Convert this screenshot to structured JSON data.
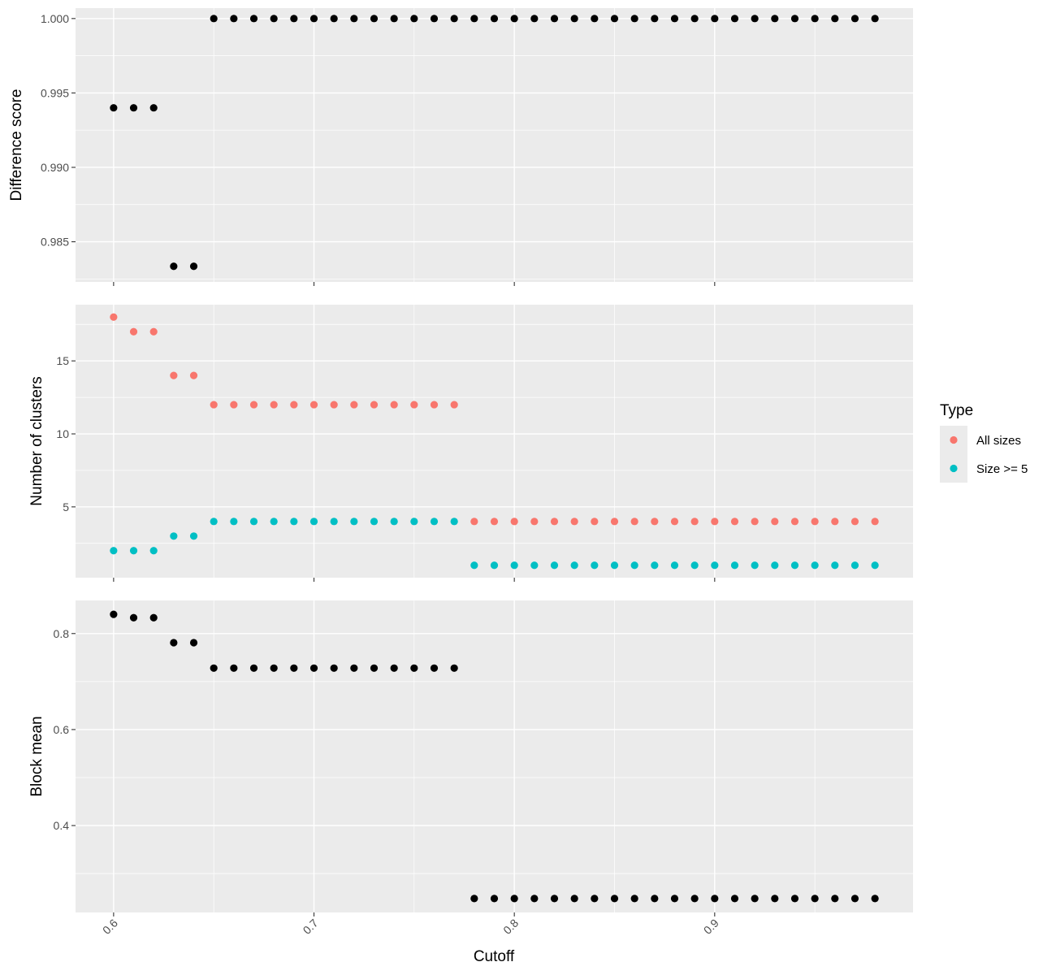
{
  "chart_data": {
    "type": "scatter",
    "xlabel": "Cutoff",
    "x_ticks": [
      0.6,
      0.7,
      0.8,
      0.9
    ],
    "x_tick_labels": [
      "0.6",
      "0.7",
      "0.8",
      "0.9"
    ],
    "xlim": [
      0.581,
      0.999
    ],
    "legend": {
      "title": "Type",
      "position": "right",
      "entries": [
        {
          "name": "All sizes",
          "color": "#F8766D"
        },
        {
          "name": "Size >= 5",
          "color": "#00BFC4"
        }
      ]
    },
    "panels": [
      {
        "ylabel": "Difference score",
        "ylim": [
          0.9823,
          1.0007
        ],
        "y_ticks": [
          0.985,
          0.99,
          0.995,
          1.0
        ],
        "y_tick_labels": [
          "0.985",
          "0.990",
          "0.995",
          "1.000"
        ],
        "grid": true,
        "series": [
          {
            "color": "#000000",
            "x": [
              0.6,
              0.61,
              0.62,
              0.63,
              0.64,
              0.65,
              0.66,
              0.67,
              0.68,
              0.69,
              0.7,
              0.71,
              0.72,
              0.73,
              0.74,
              0.75,
              0.76,
              0.77,
              0.78,
              0.79,
              0.8,
              0.81,
              0.82,
              0.83,
              0.84,
              0.85,
              0.86,
              0.87,
              0.88,
              0.89,
              0.9,
              0.91,
              0.92,
              0.93,
              0.94,
              0.95,
              0.96,
              0.97,
              0.98
            ],
            "y": [
              0.994,
              0.994,
              0.994,
              0.98335,
              0.98335,
              1.0,
              1.0,
              1.0,
              1.0,
              1.0,
              1.0,
              1.0,
              1.0,
              1.0,
              1.0,
              1.0,
              1.0,
              1.0,
              1.0,
              1.0,
              1.0,
              1.0,
              1.0,
              1.0,
              1.0,
              1.0,
              1.0,
              1.0,
              1.0,
              1.0,
              1.0,
              1.0,
              1.0,
              1.0,
              1.0,
              1.0,
              1.0,
              1.0,
              1.0
            ]
          }
        ]
      },
      {
        "ylabel": "Number of clusters",
        "ylim": [
          0.15,
          18.85
        ],
        "y_ticks": [
          5,
          10,
          15
        ],
        "y_tick_labels": [
          "5",
          "10",
          "15"
        ],
        "grid": true,
        "series": [
          {
            "name": "All sizes",
            "color": "#F8766D",
            "x": [
              0.6,
              0.61,
              0.62,
              0.63,
              0.64,
              0.65,
              0.66,
              0.67,
              0.68,
              0.69,
              0.7,
              0.71,
              0.72,
              0.73,
              0.74,
              0.75,
              0.76,
              0.77,
              0.78,
              0.79,
              0.8,
              0.81,
              0.82,
              0.83,
              0.84,
              0.85,
              0.86,
              0.87,
              0.88,
              0.89,
              0.9,
              0.91,
              0.92,
              0.93,
              0.94,
              0.95,
              0.96,
              0.97,
              0.98
            ],
            "y": [
              18,
              17,
              17,
              14,
              14,
              12,
              12,
              12,
              12,
              12,
              12,
              12,
              12,
              12,
              12,
              12,
              12,
              12,
              4,
              4,
              4,
              4,
              4,
              4,
              4,
              4,
              4,
              4,
              4,
              4,
              4,
              4,
              4,
              4,
              4,
              4,
              4,
              4,
              4
            ]
          },
          {
            "name": "Size >= 5",
            "color": "#00BFC4",
            "x": [
              0.6,
              0.61,
              0.62,
              0.63,
              0.64,
              0.65,
              0.66,
              0.67,
              0.68,
              0.69,
              0.7,
              0.71,
              0.72,
              0.73,
              0.74,
              0.75,
              0.76,
              0.77,
              0.78,
              0.79,
              0.8,
              0.81,
              0.82,
              0.83,
              0.84,
              0.85,
              0.86,
              0.87,
              0.88,
              0.89,
              0.9,
              0.91,
              0.92,
              0.93,
              0.94,
              0.95,
              0.96,
              0.97,
              0.98
            ],
            "y": [
              2,
              2,
              2,
              3,
              3,
              4,
              4,
              4,
              4,
              4,
              4,
              4,
              4,
              4,
              4,
              4,
              4,
              4,
              1,
              1,
              1,
              1,
              1,
              1,
              1,
              1,
              1,
              1,
              1,
              1,
              1,
              1,
              1,
              1,
              1,
              1,
              1,
              1,
              1
            ]
          }
        ]
      },
      {
        "ylabel": "Block mean",
        "ylim": [
          0.219,
          0.869
        ],
        "y_ticks": [
          0.4,
          0.6,
          0.8
        ],
        "y_tick_labels": [
          "0.4",
          "0.6",
          "0.8"
        ],
        "grid": true,
        "series": [
          {
            "color": "#000000",
            "x": [
              0.6,
              0.61,
              0.62,
              0.63,
              0.64,
              0.65,
              0.66,
              0.67,
              0.68,
              0.69,
              0.7,
              0.71,
              0.72,
              0.73,
              0.74,
              0.75,
              0.76,
              0.77,
              0.78,
              0.79,
              0.8,
              0.81,
              0.82,
              0.83,
              0.84,
              0.85,
              0.86,
              0.87,
              0.88,
              0.89,
              0.9,
              0.91,
              0.92,
              0.93,
              0.94,
              0.95,
              0.96,
              0.97,
              0.98
            ],
            "y": [
              0.84,
              0.833,
              0.833,
              0.781,
              0.781,
              0.728,
              0.728,
              0.728,
              0.728,
              0.728,
              0.728,
              0.728,
              0.728,
              0.728,
              0.728,
              0.728,
              0.728,
              0.728,
              0.248,
              0.248,
              0.248,
              0.248,
              0.248,
              0.248,
              0.248,
              0.248,
              0.248,
              0.248,
              0.248,
              0.248,
              0.248,
              0.248,
              0.248,
              0.248,
              0.248,
              0.248,
              0.248,
              0.248,
              0.248
            ]
          }
        ]
      }
    ]
  }
}
